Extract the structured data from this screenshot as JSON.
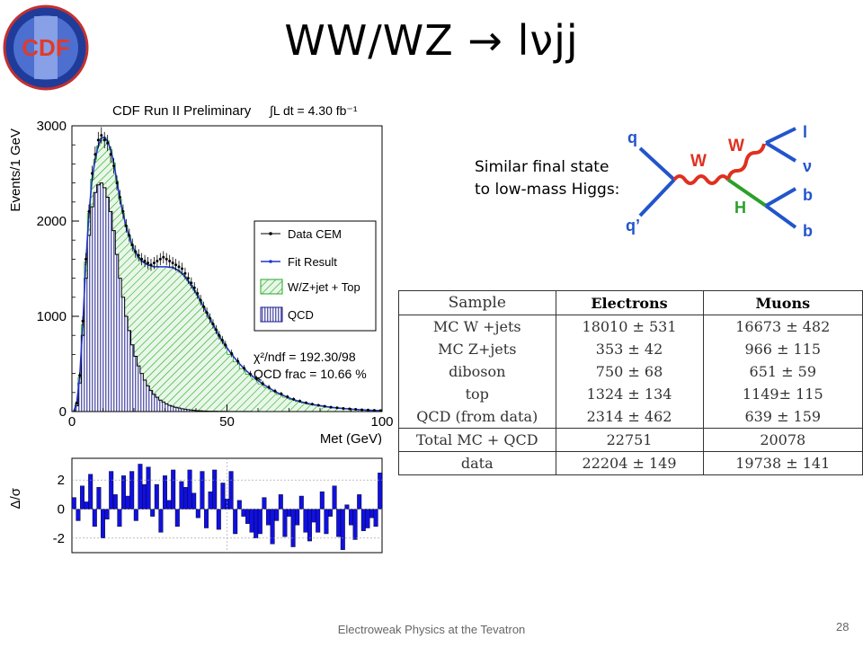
{
  "slide": {
    "title": "WW/WZ → lνjj",
    "logo_text": "CDF",
    "caption_line1": "Similar final state",
    "caption_line2": "to low-mass Higgs:",
    "footer": "Electroweak Physics at the Tevatron",
    "page_number": "28"
  },
  "feynman": {
    "labels": [
      "q",
      "q’",
      "W",
      "W",
      "H",
      "l",
      "ν",
      "b",
      "b"
    ],
    "colors": {
      "quark": "#2255cc",
      "w_boson": "#e03020",
      "higgs": "#2aa02a"
    }
  },
  "chart_data": [
    {
      "type": "histogram",
      "title": "CDF Run II Preliminary",
      "luminosity": "∫L dt = 4.30 fb⁻¹",
      "xlabel": "Met (GeV)",
      "ylabel": "Events/1 GeV",
      "xlim": [
        0,
        100
      ],
      "ylim": [
        0,
        3000
      ],
      "xticks": [
        "0",
        "50",
        "100"
      ],
      "yticks": [
        "0",
        "1000",
        "2000",
        "3000"
      ],
      "legend_position": "top-right",
      "legend": [
        "Data CEM",
        "Fit Result",
        "W/Z+jet + Top",
        "QCD"
      ],
      "fit_text": [
        "χ²/ndf = 192.30/98",
        "QCD frac = 10.66 %"
      ],
      "colors": {
        "data": "#000000",
        "fit": "#2233cc",
        "wz": "#22aa22",
        "qcd": "#1a1a8c"
      },
      "x": [
        1,
        2,
        3,
        4,
        5,
        6,
        7,
        8,
        9,
        10,
        11,
        12,
        13,
        14,
        15,
        16,
        17,
        18,
        19,
        20,
        21,
        22,
        23,
        24,
        25,
        26,
        27,
        28,
        29,
        30,
        31,
        32,
        33,
        34,
        35,
        36,
        37,
        38,
        39,
        40,
        41,
        42,
        43,
        44,
        45,
        46,
        47,
        48,
        49,
        50,
        52,
        54,
        56,
        58,
        60,
        62,
        64,
        66,
        68,
        70,
        72,
        74,
        76,
        78,
        80,
        82,
        84,
        86,
        88,
        90,
        92,
        94,
        96,
        98,
        100
      ],
      "qcd": [
        0,
        60,
        300,
        800,
        1400,
        1850,
        2150,
        2300,
        2380,
        2400,
        2350,
        2250,
        2100,
        1900,
        1650,
        1400,
        1200,
        1000,
        850,
        700,
        580,
        480,
        400,
        330,
        270,
        220,
        180,
        150,
        120,
        100,
        80,
        65,
        55,
        45,
        38,
        30,
        25,
        20,
        16,
        13,
        10,
        8,
        6,
        5,
        4,
        3,
        3,
        2,
        2,
        2,
        1,
        1,
        1,
        1,
        0,
        0,
        0,
        0,
        0,
        0,
        0,
        0,
        0,
        0,
        0,
        0,
        0,
        0,
        0,
        0,
        0,
        0,
        0,
        0,
        0
      ],
      "wz": [
        0,
        20,
        60,
        110,
        170,
        230,
        290,
        350,
        410,
        470,
        530,
        590,
        650,
        710,
        770,
        830,
        880,
        940,
        990,
        1040,
        1090,
        1140,
        1180,
        1230,
        1270,
        1310,
        1340,
        1370,
        1400,
        1420,
        1440,
        1450,
        1460,
        1450,
        1440,
        1420,
        1390,
        1350,
        1310,
        1260,
        1210,
        1150,
        1090,
        1030,
        970,
        910,
        850,
        790,
        740,
        690,
        600,
        520,
        450,
        390,
        340,
        290,
        250,
        210,
        180,
        150,
        125,
        105,
        90,
        75,
        65,
        55,
        45,
        38,
        32,
        27,
        22,
        18,
        15,
        12,
        10
      ],
      "fit": [
        0,
        80,
        360,
        910,
        1570,
        2080,
        2440,
        2650,
        2790,
        2870,
        2880,
        2840,
        2750,
        2610,
        2420,
        2230,
        2080,
        1940,
        1840,
        1740,
        1670,
        1620,
        1580,
        1560,
        1540,
        1530,
        1520,
        1520,
        1520,
        1520,
        1520,
        1515,
        1515,
        1495,
        1478,
        1450,
        1415,
        1370,
        1326,
        1273,
        1220,
        1158,
        1096,
        1035,
        974,
        913,
        853,
        792,
        742,
        692,
        601,
        521,
        451,
        391,
        340,
        290,
        250,
        210,
        180,
        150,
        125,
        105,
        90,
        75,
        65,
        55,
        45,
        38,
        32,
        27,
        22,
        18,
        15,
        12,
        10
      ],
      "data": [
        0,
        90,
        380,
        950,
        1600,
        2100,
        2500,
        2700,
        2850,
        2900,
        2850,
        2820,
        2700,
        2580,
        2400,
        2250,
        2100,
        1950,
        1850,
        1750,
        1680,
        1640,
        1600,
        1580,
        1560,
        1540,
        1560,
        1580,
        1600,
        1620,
        1600,
        1580,
        1560,
        1540,
        1520,
        1500,
        1450,
        1400,
        1350,
        1300,
        1240,
        1170,
        1100,
        1040,
        980,
        920,
        860,
        800,
        750,
        700,
        610,
        530,
        455,
        395,
        345,
        295,
        255,
        215,
        185,
        155,
        130,
        110,
        92,
        78,
        66,
        56,
        46,
        40,
        33,
        28,
        23,
        19,
        16,
        13,
        11
      ],
      "residual_chart": {
        "ylabel": "Δ/σ",
        "ylim": [
          -3,
          3.5
        ],
        "yticks": [
          "-2",
          "0",
          "2"
        ],
        "values": [
          0.8,
          -0.8,
          1.6,
          0.5,
          2.4,
          -1.2,
          1.5,
          -2.0,
          -0.7,
          2.6,
          1.0,
          -1.2,
          2.3,
          0.9,
          2.6,
          -0.8,
          3.1,
          1.7,
          2.9,
          -0.5,
          1.7,
          -1.6,
          2.3,
          0.6,
          2.7,
          -1.2,
          1.9,
          1.5,
          2.7,
          1.1,
          -0.6,
          2.6,
          -1.3,
          1.2,
          2.7,
          -1.4,
          1.8,
          0.7,
          2.6,
          -1.7,
          0.6,
          -0.5,
          -1.0,
          -1.6,
          -2.0,
          -1.7,
          0.8,
          -1.1,
          -2.4,
          -0.8,
          1.0,
          -1.9,
          -0.5,
          -2.6,
          -1.1,
          0.9,
          -1.6,
          -2.2,
          -0.9,
          -1.6,
          1.2,
          -1.7,
          -0.5,
          1.6,
          -1.9,
          -2.8,
          0.3,
          -1.1,
          -2.1,
          1.0,
          -1.5,
          -1.3,
          -0.6,
          -1.2,
          2.5
        ]
      }
    },
    {
      "type": "table",
      "columns": [
        "Sample",
        "Electrons",
        "Muons"
      ],
      "rows": [
        [
          "MC W +jets",
          "18010 ± 531",
          "16673 ± 482"
        ],
        [
          "MC Z+jets",
          "353 ± 42",
          "966 ± 115"
        ],
        [
          "diboson",
          "750 ± 68",
          "651 ± 59"
        ],
        [
          "top",
          "1324 ± 134",
          "1149± 115"
        ],
        [
          "QCD (from data)",
          "2314 ± 462",
          "639 ± 159"
        ],
        [
          "Total MC + QCD",
          "22751",
          "20078"
        ],
        [
          "data",
          "22204 ± 149",
          "19738 ± 141"
        ]
      ]
    }
  ]
}
